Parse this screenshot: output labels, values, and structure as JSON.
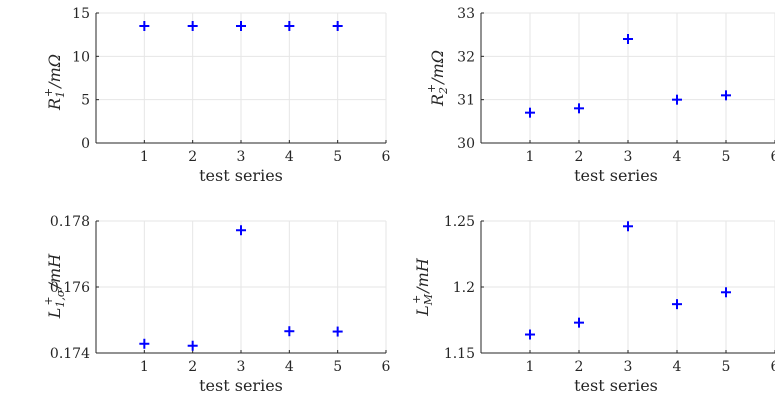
{
  "chart_data": [
    {
      "type": "scatter",
      "ylabel": "R1+/mΩ",
      "xlabel": "test series",
      "x": [
        1,
        2,
        3,
        4,
        5
      ],
      "y": [
        13.5,
        13.5,
        13.5,
        13.5,
        13.5
      ],
      "xlim": [
        0,
        6
      ],
      "ylim": [
        0,
        15
      ],
      "xticks": [
        "1",
        "2",
        "3",
        "4",
        "5",
        "6"
      ],
      "yticks": [
        "0",
        "5",
        "10",
        "15"
      ],
      "grid": true,
      "marker_color": "#0000ff"
    },
    {
      "type": "scatter",
      "ylabel": "R2+/mΩ",
      "xlabel": "test series",
      "x": [
        1,
        2,
        3,
        4,
        5
      ],
      "y": [
        30.7,
        30.8,
        32.4,
        31.0,
        31.1
      ],
      "xlim": [
        0,
        6
      ],
      "ylim": [
        30,
        33
      ],
      "xticks": [
        "1",
        "2",
        "3",
        "4",
        "5",
        "6"
      ],
      "yticks": [
        "30",
        "31",
        "32",
        "33"
      ],
      "grid": true,
      "marker_color": "#0000ff"
    },
    {
      "type": "scatter",
      "ylabel": "L1,σ+/mH",
      "xlabel": "test series",
      "x": [
        1,
        2,
        3,
        4,
        5
      ],
      "y": [
        0.17428,
        0.17422,
        0.17772,
        0.17466,
        0.17465
      ],
      "xlim": [
        0,
        6
      ],
      "ylim": [
        0.174,
        0.178
      ],
      "xticks": [
        "1",
        "2",
        "3",
        "4",
        "5",
        "6"
      ],
      "yticks": [
        "0.174",
        "0.176",
        "0.178"
      ],
      "grid": true,
      "marker_color": "#0000ff"
    },
    {
      "type": "scatter",
      "ylabel": "LM+/mH",
      "xlabel": "test series",
      "x": [
        1,
        2,
        3,
        4,
        5
      ],
      "y": [
        1.164,
        1.173,
        1.246,
        1.187,
        1.196
      ],
      "xlim": [
        0,
        6
      ],
      "ylim": [
        1.15,
        1.25
      ],
      "xticks": [
        "1",
        "2",
        "3",
        "4",
        "5",
        "6"
      ],
      "yticks": [
        "1.15",
        "1.2",
        "1.25"
      ],
      "grid": true,
      "marker_color": "#0000ff"
    }
  ]
}
